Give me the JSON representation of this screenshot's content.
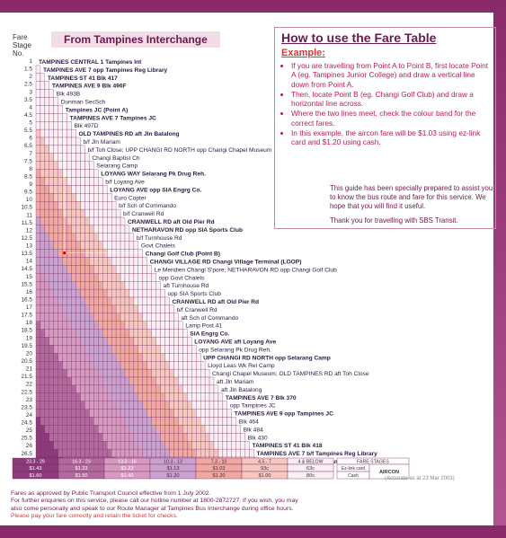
{
  "header": {
    "fare_stage_no": "Fare Stage No.",
    "from_title": "From Tampines Interchange"
  },
  "howto": {
    "title": "How to use the Fare Table",
    "example": "Example:",
    "steps": [
      "If you are travelling from Point A to Point B, first locate Point A (eg. Tampines Junior College) and draw a vertical line down from Point A.",
      "Then, locate Point B (eg. Changi Golf Club) and draw a horizontal line across.",
      "Where the two lines meet, check the colour band for the correct fares.",
      "In this example, the aircon fare will be $1.03 using ez-link card and $1.20 using cash."
    ]
  },
  "guide": {
    "p1": "This guide has been specially prepared to assist you to know the bus route and fare for this service. We hope that you will find it useful.",
    "p2": "Thank you for travelling with SBS Transit."
  },
  "stages": [
    "1",
    "1.5",
    "2",
    "2.5",
    "3",
    "3.5",
    "4",
    "4.5",
    "5",
    "5.5",
    "6",
    "6.5",
    "7",
    "7.5",
    "8",
    "8.5",
    "9",
    "9.5",
    "10",
    "10.5",
    "11",
    "11.5",
    "12",
    "12.5",
    "13",
    "13.5",
    "14",
    "14.5",
    "15",
    "15.5",
    "16",
    "16.5",
    "17",
    "17.5",
    "18",
    "18.5",
    "19",
    "19.5",
    "20",
    "20.5",
    "21",
    "21.5",
    "22",
    "22.5",
    "23",
    "23.5",
    "24",
    "24.5",
    "25",
    "25.5",
    "26",
    "26.5",
    "27"
  ],
  "stops": [
    "TAMPINES CENTRAL 1 Tampines Int",
    "TAMPINES AVE 7 opp Tampines Reg Library",
    "TAMPINES ST 41 Blk 417",
    "TAMPINES AVE 9 Blk 496F",
    "Blk 493B",
    "Dunman SecSch",
    "Tampines JC (Point A)",
    "TAMPINES AVE 7 Tampines JC",
    "Blk 497D",
    "OLD TAMPINES RD aft Jln Batalong",
    "b/f Jln Mariam",
    "b/f Toh Close; UPP CHANGI RD NORTH opp Changi Chapel Museum",
    "Changi Baptist Ch",
    "Selarang Camp",
    "LOYANG WAY Selarang Pk Drug Reh.",
    "b/f Loyang Ave",
    "LOYANG AVE opp SIA Engrg Co.",
    "Euro Copter",
    "b/f Sch of Commando",
    "b/f Cranwell Rd",
    "CRANWELL RD aft Old Pier Rd",
    "NETHARAVON RD opp SIA Sports Club",
    "b/f Turnhouse Rd",
    "Govt Chalets",
    "Changi Golf Club (Point B)",
    "CHANGI VILLAGE RD Changi Village Terminal (LOOP)",
    "Le Meridien Changi S'pore; NETHARAVON RD opp Changi Golf Club",
    "opp Govt Chalets",
    "aft Turnhouse Rd",
    "opp SIA Sports Club",
    "CRANWELL RD aft Old Pier Rd",
    "b/f Cranwell Rd",
    "aft Sch of Commando",
    "Lamp Post 41",
    "SIA Engrg Co.",
    "LOYANG AVE aft Loyang Ave",
    "opp Selarang Pk Drug Reh.",
    "UPP CHANGI RD NORTH opp Selarang Camp",
    "Lloyd Leas Wk Rel Camp",
    "Changi Chapel Museum; OLD TAMPINES RD aft Toh Close",
    "aft Jln Mariam",
    "aft Jln Batalong",
    "TAMPINES AVE 7 Blk 370",
    "opp Tampines JC",
    "TAMPINES AVE 9 opp Tampines JC",
    "Blk 464",
    "Blk 484",
    "Blk 430",
    "TAMPINES ST 41 Blk 418",
    "TAMPINES AVE 7 b/f Tampines Reg Library",
    "TAMPINES CENTRAL 1 Tampines Int"
  ],
  "fare_bands": [
    {
      "range": "23.3 - 29",
      "ez": "$1.43",
      "cash": "$1.60",
      "color": "#8c3b7a"
    },
    {
      "range": "16.3 - 23",
      "ez": "$1.33",
      "cash": "$1.50",
      "color": "#b06a9c"
    },
    {
      "range": "13.3 - 16",
      "ez": "$1.23",
      "cash": "$1.40",
      "color": "#d49ac0"
    },
    {
      "range": "10.3 - 13",
      "ez": "$1.13",
      "cash": "$1.20",
      "color": "#c9a3d0"
    },
    {
      "range": "7.3 - 10",
      "ez": "$1.03",
      "cash": "$1.20",
      "color": "#f0a9a0"
    },
    {
      "range": "4.5 - 7",
      "ez": "93c",
      "cash": "$1.00",
      "color": "#f6c9c0"
    },
    {
      "range": "4 & BELOW",
      "ez": "63c",
      "cash": "80c",
      "color": "#faf0f4"
    }
  ],
  "legend": {
    "fare_stages": "FARE STAGES",
    "ezlink": "Ez-link card",
    "cash": "Cash",
    "aircon": "AIRCON"
  },
  "accurate": "(Accurate as at 23 Mar 2003)",
  "footer": {
    "line1": "Fares as approved by Public Transport Council effective from 1 July 2002.",
    "line2": "For further enquiries on this service, please call our hotline number at 1800-2872727.  If you wish, you may",
    "line3": "also come personally and speak to our Route Manager at Tampines Bus Interchange during office hours.",
    "line4": "Please pay your fare correctly and retain the ticket for checks."
  },
  "colors": {
    "brand": "#8a2a6b",
    "accent": "#c2185b"
  }
}
